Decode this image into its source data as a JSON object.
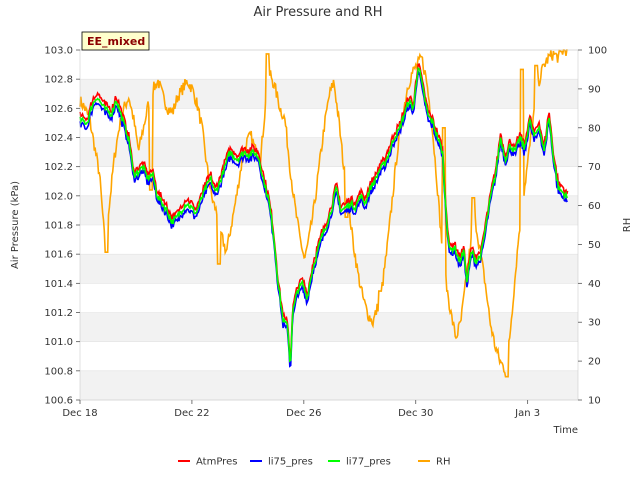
{
  "chart_data": {
    "type": "line",
    "title": "Air Pressure and RH",
    "badge": "EE_mixed",
    "xlabel": "Time",
    "ylabel": "Air Pressure (kPa)",
    "y2label": "RH",
    "x_ticks": [
      "Dec 18",
      "Dec 22",
      "Dec 26",
      "Dec 30",
      "Jan 3"
    ],
    "x_tick_days": [
      0,
      4,
      8,
      12,
      16
    ],
    "xlim_days": [
      0,
      17.8
    ],
    "ylim": [
      100.6,
      103.0
    ],
    "y_ticks": [
      "100.6",
      "100.8",
      "101.0",
      "101.2",
      "101.4",
      "101.6",
      "101.8",
      "102.0",
      "102.2",
      "102.4",
      "102.6",
      "102.8",
      "103.0"
    ],
    "y2lim": [
      10,
      100
    ],
    "y2_ticks": [
      "10",
      "20",
      "30",
      "40",
      "50",
      "60",
      "70",
      "80",
      "90",
      "100"
    ],
    "grid": true,
    "legend_position": "bottom",
    "colors": {
      "AtmPres": "#ff0000",
      "li75_pres": "#0000ff",
      "li77_pres": "#00ff00",
      "RH": "#ffa500"
    },
    "pressure_base": [
      [
        0.0,
        102.52
      ],
      [
        0.3,
        102.5
      ],
      [
        0.5,
        102.62
      ],
      [
        0.7,
        102.68
      ],
      [
        1.0,
        102.6
      ],
      [
        1.3,
        102.56
      ],
      [
        1.5,
        102.66
      ],
      [
        1.8,
        102.5
      ],
      [
        2.0,
        102.4
      ],
      [
        2.1,
        102.3
      ],
      [
        2.2,
        102.15
      ],
      [
        2.4,
        102.16
      ],
      [
        2.6,
        102.2
      ],
      [
        2.8,
        102.12
      ],
      [
        3.0,
        102.15
      ],
      [
        3.2,
        102.0
      ],
      [
        3.4,
        101.95
      ],
      [
        3.6,
        101.9
      ],
      [
        3.8,
        101.82
      ],
      [
        4.0,
        101.85
      ],
      [
        4.2,
        101.9
      ],
      [
        4.4,
        101.95
      ],
      [
        4.6,
        101.92
      ],
      [
        4.8,
        101.88
      ],
      [
        5.0,
        101.97
      ],
      [
        5.2,
        102.05
      ],
      [
        5.4,
        102.12
      ],
      [
        5.6,
        102.02
      ],
      [
        5.8,
        102.1
      ],
      [
        6.0,
        102.2
      ],
      [
        6.2,
        102.3
      ],
      [
        6.5,
        102.25
      ],
      [
        6.8,
        102.3
      ],
      [
        7.0,
        102.28
      ],
      [
        7.2,
        102.3
      ],
      [
        7.4,
        102.26
      ],
      [
        7.6,
        102.1
      ],
      [
        7.8,
        101.98
      ],
      [
        8.0,
        101.75
      ],
      [
        8.2,
        101.4
      ],
      [
        8.4,
        101.15
      ],
      [
        8.6,
        101.1
      ],
      [
        8.7,
        100.82
      ],
      [
        8.8,
        101.2
      ],
      [
        9.0,
        101.35
      ],
      [
        9.2,
        101.4
      ],
      [
        9.4,
        101.3
      ],
      [
        9.6,
        101.48
      ],
      [
        9.8,
        101.6
      ],
      [
        10.0,
        101.72
      ],
      [
        10.2,
        101.8
      ],
      [
        10.4,
        101.9
      ],
      [
        10.6,
        102.05
      ],
      [
        10.8,
        101.9
      ],
      [
        11.0,
        101.92
      ],
      [
        11.2,
        101.95
      ],
      [
        11.4,
        101.92
      ],
      [
        11.6,
        102.0
      ],
      [
        11.8,
        101.95
      ],
      [
        12.0,
        102.05
      ],
      [
        12.2,
        102.1
      ],
      [
        12.4,
        102.18
      ],
      [
        12.6,
        102.22
      ],
      [
        12.8,
        102.3
      ],
      [
        13.0,
        102.4
      ],
      [
        13.2,
        102.45
      ],
      [
        13.4,
        102.55
      ],
      [
        13.6,
        102.65
      ],
      [
        13.8,
        102.6
      ],
      [
        14.0,
        102.9
      ],
      [
        14.2,
        102.72
      ],
      [
        14.4,
        102.55
      ],
      [
        14.6,
        102.5
      ],
      [
        14.8,
        102.4
      ],
      [
        15.0,
        102.3
      ],
      [
        15.1,
        102.0
      ],
      [
        15.2,
        101.78
      ],
      [
        15.3,
        101.62
      ],
      [
        15.5,
        101.65
      ],
      [
        15.7,
        101.55
      ],
      [
        15.9,
        101.62
      ],
      [
        16.0,
        101.4
      ],
      [
        16.2,
        101.62
      ],
      [
        16.4,
        101.55
      ],
      [
        16.6,
        101.6
      ],
      [
        16.8,
        101.8
      ],
      [
        17.0,
        102.0
      ],
      [
        17.2,
        102.15
      ],
      [
        17.4,
        102.4
      ],
      [
        17.6,
        102.25
      ],
      [
        17.8,
        102.35
      ],
      [
        18.0,
        102.3
      ],
      [
        18.2,
        102.4
      ],
      [
        18.4,
        102.32
      ],
      [
        18.6,
        102.52
      ],
      [
        18.8,
        102.4
      ],
      [
        19.0,
        102.48
      ],
      [
        19.2,
        102.3
      ],
      [
        19.4,
        102.55
      ],
      [
        19.6,
        102.25
      ],
      [
        19.8,
        102.05
      ],
      [
        20.0,
        102.02
      ],
      [
        20.2,
        101.98
      ]
    ],
    "series": [
      {
        "name": "AtmPres",
        "offset": 0.03
      },
      {
        "name": "li75_pres",
        "offset": -0.03
      },
      {
        "name": "li77_pres",
        "offset": 0.0
      },
      {
        "name": "RH"
      }
    ],
    "rh_points": [
      [
        0.0,
        87
      ],
      [
        0.2,
        85
      ],
      [
        0.4,
        82
      ],
      [
        0.6,
        75
      ],
      [
        0.8,
        68
      ],
      [
        1.0,
        52
      ],
      [
        1.2,
        60
      ],
      [
        1.4,
        72
      ],
      [
        1.6,
        80
      ],
      [
        1.8,
        85
      ],
      [
        2.0,
        88
      ],
      [
        2.2,
        82
      ],
      [
        2.4,
        74
      ],
      [
        2.6,
        80
      ],
      [
        2.8,
        86
      ],
      [
        3.0,
        90
      ],
      [
        3.2,
        92
      ],
      [
        3.4,
        88
      ],
      [
        3.6,
        85
      ],
      [
        3.8,
        84
      ],
      [
        4.0,
        88
      ],
      [
        4.2,
        90
      ],
      [
        4.4,
        92
      ],
      [
        4.6,
        90
      ],
      [
        4.8,
        86
      ],
      [
        5.0,
        80
      ],
      [
        5.2,
        70
      ],
      [
        5.4,
        62
      ],
      [
        5.6,
        58
      ],
      [
        5.8,
        52
      ],
      [
        6.0,
        48
      ],
      [
        6.2,
        55
      ],
      [
        6.4,
        62
      ],
      [
        6.6,
        70
      ],
      [
        6.8,
        76
      ],
      [
        7.0,
        78
      ],
      [
        7.2,
        74
      ],
      [
        7.4,
        72
      ],
      [
        7.6,
        86
      ],
      [
        7.8,
        94
      ],
      [
        8.0,
        90
      ],
      [
        8.2,
        85
      ],
      [
        8.4,
        82
      ],
      [
        8.6,
        70
      ],
      [
        8.8,
        60
      ],
      [
        9.0,
        52
      ],
      [
        9.2,
        46
      ],
      [
        9.4,
        52
      ],
      [
        9.6,
        60
      ],
      [
        9.8,
        70
      ],
      [
        10.0,
        80
      ],
      [
        10.2,
        88
      ],
      [
        10.4,
        92
      ],
      [
        10.6,
        82
      ],
      [
        10.8,
        70
      ],
      [
        11.0,
        60
      ],
      [
        11.2,
        50
      ],
      [
        11.4,
        42
      ],
      [
        11.6,
        36
      ],
      [
        11.8,
        32
      ],
      [
        12.0,
        30
      ],
      [
        12.2,
        34
      ],
      [
        12.4,
        40
      ],
      [
        12.6,
        50
      ],
      [
        12.8,
        62
      ],
      [
        13.0,
        74
      ],
      [
        13.2,
        82
      ],
      [
        13.4,
        90
      ],
      [
        13.6,
        94
      ],
      [
        13.8,
        96
      ],
      [
        14.0,
        98
      ],
      [
        14.2,
        92
      ],
      [
        14.4,
        82
      ],
      [
        14.6,
        68
      ],
      [
        14.8,
        52
      ],
      [
        15.0,
        40
      ],
      [
        15.2,
        32
      ],
      [
        15.4,
        26
      ],
      [
        15.6,
        30
      ],
      [
        15.8,
        40
      ],
      [
        16.0,
        50
      ],
      [
        16.2,
        56
      ],
      [
        16.4,
        48
      ],
      [
        16.6,
        40
      ],
      [
        16.8,
        30
      ],
      [
        17.0,
        24
      ],
      [
        17.2,
        20
      ],
      [
        17.4,
        18
      ],
      [
        17.6,
        26
      ],
      [
        17.8,
        40
      ],
      [
        18.0,
        54
      ],
      [
        18.2,
        64
      ],
      [
        18.4,
        74
      ],
      [
        18.6,
        84
      ],
      [
        18.8,
        92
      ],
      [
        19.0,
        96
      ],
      [
        19.2,
        98
      ],
      [
        19.4,
        99
      ],
      [
        19.6,
        98
      ],
      [
        19.8,
        100
      ],
      [
        20.0,
        100
      ]
    ],
    "rh_spikes": [
      [
        1.1,
        48
      ],
      [
        2.9,
        64
      ],
      [
        5.7,
        45
      ],
      [
        7.7,
        99
      ],
      [
        10.9,
        57
      ],
      [
        12.3,
        38
      ],
      [
        14.9,
        80
      ],
      [
        16.1,
        62
      ],
      [
        17.5,
        16
      ],
      [
        18.1,
        95
      ],
      [
        18.7,
        96
      ]
    ]
  }
}
